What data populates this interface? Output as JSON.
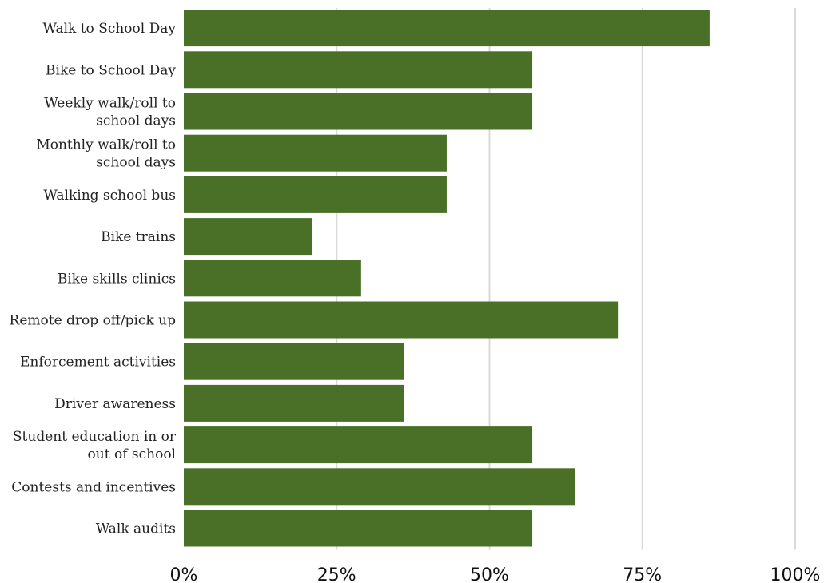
{
  "chart_data": {
    "type": "bar",
    "orientation": "horizontal",
    "categories": [
      [
        "Walk to School Day"
      ],
      [
        "Bike to School Day"
      ],
      [
        "Weekly walk/roll to",
        "school days"
      ],
      [
        "Monthly walk/roll to",
        "school days"
      ],
      [
        "Walking school bus"
      ],
      [
        "Bike trains"
      ],
      [
        "Bike skills clinics"
      ],
      [
        "Remote drop off/pick up"
      ],
      [
        "Enforcement activities"
      ],
      [
        "Driver awareness"
      ],
      [
        "Student education in or",
        "out of school"
      ],
      [
        "Contests and incentives"
      ],
      [
        "Walk audits"
      ]
    ],
    "values": [
      86,
      57,
      57,
      43,
      43,
      21,
      29,
      71,
      36,
      36,
      57,
      64,
      57
    ],
    "xlim": [
      0,
      100
    ],
    "ticks": [
      "0%",
      "25%",
      "50%",
      "75%",
      "100%"
    ],
    "title": "",
    "xlabel": "",
    "ylabel": "",
    "grid": "vertical",
    "legend": "none",
    "bar_color": "#4a7028",
    "grid_color": "#d9d9d9"
  }
}
